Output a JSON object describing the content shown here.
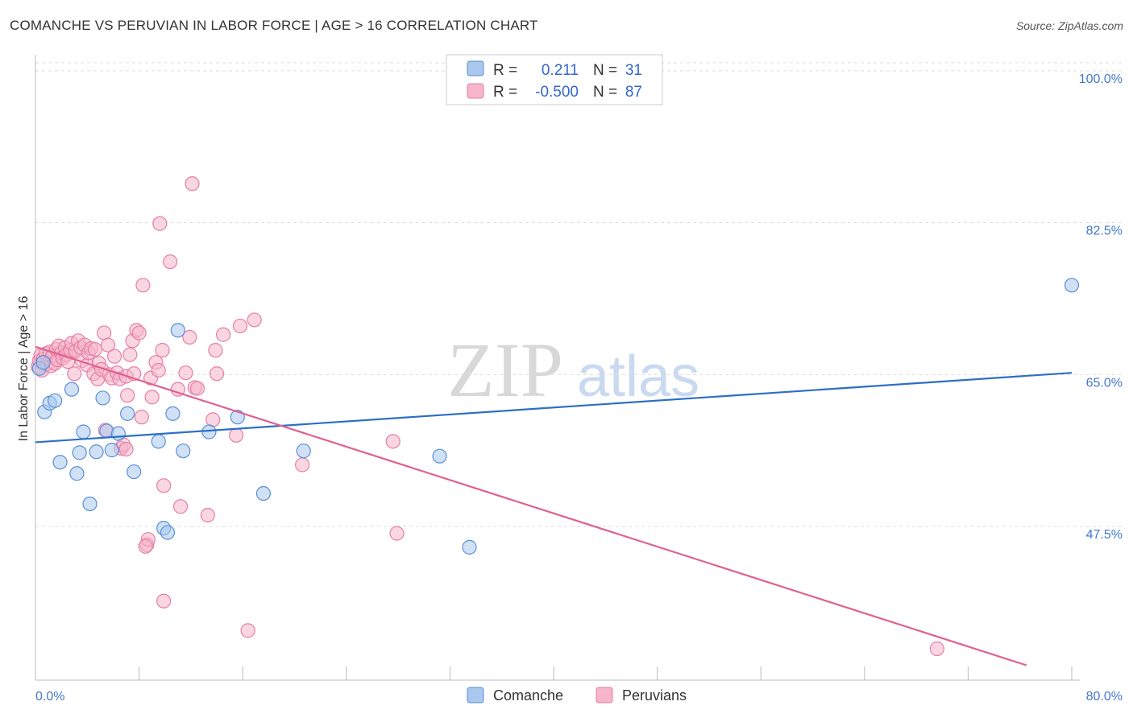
{
  "title": "COMANCHE VS PERUVIAN IN LABOR FORCE | AGE > 16 CORRELATION CHART",
  "source": "Source: ZipAtlas.com",
  "colors": {
    "comanche_fill": "#aac8ee",
    "comanche_stroke": "#5b8fd6",
    "comanche_line": "#2c6fc7",
    "peruvian_fill": "#f6b5ca",
    "peruvian_stroke": "#e57fa3",
    "peruvian_line": "#e06090",
    "grid": "#dddddd",
    "tick_text": "#4477cc"
  },
  "legend": {
    "r_label": "R =",
    "n_label": "N =",
    "rows": [
      {
        "r": "0.211",
        "n": "31",
        "series": "Comanche"
      },
      {
        "r": "-0.500",
        "n": "87",
        "series": "Peruvians"
      }
    ]
  },
  "chart_data": {
    "type": "scatter",
    "title": "COMANCHE VS PERUVIAN IN LABOR FORCE | AGE > 16 CORRELATION CHART",
    "xlabel": "",
    "ylabel": "In Labor Force | Age > 16",
    "xlim": [
      0,
      80
    ],
    "ylim": [
      31.5,
      102
    ],
    "x_tick_labels": [
      "0.0%",
      "80.0%"
    ],
    "y_ticks": [
      47.5,
      65.0,
      82.5,
      100.0
    ],
    "y_tick_labels": [
      "47.5%",
      "65.0%",
      "82.5%",
      "100.0%"
    ],
    "grid": true,
    "legend_position": "top-center",
    "watermark": "ZIPatlas",
    "series": [
      {
        "name": "Comanche",
        "r": 0.211,
        "n": 31,
        "trend": {
          "x": [
            0,
            80
          ],
          "y": [
            57.2,
            65.2
          ]
        },
        "points": [
          [
            0.3,
            65.7
          ],
          [
            0.6,
            66.4
          ],
          [
            0.7,
            60.7
          ],
          [
            1.1,
            61.7
          ],
          [
            1.5,
            62.0
          ],
          [
            1.9,
            54.9
          ],
          [
            2.8,
            63.3
          ],
          [
            3.2,
            53.6
          ],
          [
            3.4,
            56.0
          ],
          [
            3.7,
            58.4
          ],
          [
            4.2,
            50.1
          ],
          [
            4.7,
            56.1
          ],
          [
            5.2,
            62.3
          ],
          [
            5.5,
            58.5
          ],
          [
            5.9,
            56.3
          ],
          [
            6.4,
            58.2
          ],
          [
            7.1,
            60.5
          ],
          [
            7.6,
            53.8
          ],
          [
            9.5,
            57.3
          ],
          [
            9.9,
            47.3
          ],
          [
            10.2,
            46.8
          ],
          [
            10.6,
            60.5
          ],
          [
            11.0,
            70.1
          ],
          [
            11.4,
            56.2
          ],
          [
            13.4,
            58.4
          ],
          [
            15.6,
            60.1
          ],
          [
            17.6,
            51.3
          ],
          [
            20.7,
            56.2
          ],
          [
            31.2,
            55.6
          ],
          [
            33.5,
            45.1
          ],
          [
            80.0,
            75.3
          ]
        ]
      },
      {
        "name": "Peruvians",
        "r": -0.5,
        "n": 87,
        "trend": {
          "x": [
            0,
            76.5
          ],
          "y": [
            68.2,
            31.5
          ]
        },
        "points": [
          [
            0.2,
            65.9
          ],
          [
            0.3,
            66.6
          ],
          [
            0.4,
            67.2
          ],
          [
            0.5,
            65.5
          ],
          [
            0.6,
            66.8
          ],
          [
            0.8,
            67.4
          ],
          [
            0.9,
            66.2
          ],
          [
            1.1,
            67.6
          ],
          [
            1.2,
            66.0
          ],
          [
            1.3,
            67.1
          ],
          [
            1.5,
            66.3
          ],
          [
            1.6,
            67.9
          ],
          [
            1.7,
            66.7
          ],
          [
            1.8,
            68.3
          ],
          [
            2.0,
            67.5
          ],
          [
            2.1,
            66.9
          ],
          [
            2.3,
            68.1
          ],
          [
            2.4,
            67.3
          ],
          [
            2.5,
            66.5
          ],
          [
            2.7,
            67.8
          ],
          [
            2.8,
            68.6
          ],
          [
            3.0,
            65.1
          ],
          [
            3.1,
            67.7
          ],
          [
            3.3,
            68.9
          ],
          [
            3.5,
            68.1
          ],
          [
            3.6,
            66.6
          ],
          [
            3.8,
            68.4
          ],
          [
            4.0,
            66.1
          ],
          [
            4.1,
            67.5
          ],
          [
            4.3,
            68.0
          ],
          [
            4.5,
            65.1
          ],
          [
            4.6,
            67.9
          ],
          [
            4.8,
            64.5
          ],
          [
            4.9,
            66.3
          ],
          [
            5.1,
            65.6
          ],
          [
            5.3,
            69.8
          ],
          [
            5.4,
            58.6
          ],
          [
            5.6,
            68.4
          ],
          [
            5.7,
            65.0
          ],
          [
            5.9,
            64.6
          ],
          [
            6.1,
            67.1
          ],
          [
            6.3,
            65.2
          ],
          [
            6.5,
            64.5
          ],
          [
            6.6,
            56.5
          ],
          [
            6.8,
            56.9
          ],
          [
            7.0,
            64.8
          ],
          [
            7.1,
            62.6
          ],
          [
            7.3,
            67.3
          ],
          [
            7.5,
            68.9
          ],
          [
            7.6,
            65.1
          ],
          [
            7.8,
            70.1
          ],
          [
            8.0,
            69.8
          ],
          [
            8.2,
            60.1
          ],
          [
            8.3,
            75.3
          ],
          [
            8.6,
            45.4
          ],
          [
            8.7,
            46.0
          ],
          [
            8.9,
            64.6
          ],
          [
            9.0,
            62.4
          ],
          [
            9.3,
            66.4
          ],
          [
            9.5,
            65.5
          ],
          [
            9.6,
            82.4
          ],
          [
            9.8,
            67.8
          ],
          [
            9.9,
            52.2
          ],
          [
            10.4,
            78.0
          ],
          [
            11.0,
            63.3
          ],
          [
            11.2,
            49.8
          ],
          [
            11.6,
            65.2
          ],
          [
            11.9,
            69.3
          ],
          [
            12.1,
            87.0
          ],
          [
            12.3,
            63.5
          ],
          [
            12.5,
            63.4
          ],
          [
            13.3,
            48.8
          ],
          [
            13.7,
            59.8
          ],
          [
            13.9,
            67.8
          ],
          [
            14.0,
            65.1
          ],
          [
            14.5,
            69.6
          ],
          [
            15.8,
            70.6
          ],
          [
            16.4,
            35.5
          ],
          [
            16.9,
            71.3
          ],
          [
            9.9,
            38.9
          ],
          [
            20.6,
            54.6
          ],
          [
            27.6,
            57.3
          ],
          [
            27.9,
            46.7
          ],
          [
            69.6,
            33.4
          ],
          [
            7.0,
            56.4
          ],
          [
            8.5,
            45.2
          ],
          [
            15.5,
            58.0
          ]
        ]
      }
    ]
  },
  "bottom_legend": [
    "Comanche",
    "Peruvians"
  ]
}
